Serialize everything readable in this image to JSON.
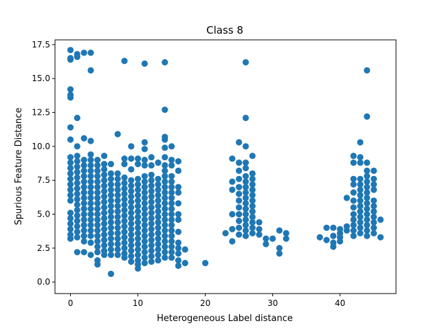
{
  "chart_data": {
    "type": "scatter",
    "title": "Class 8",
    "xlabel": "Heterogeneous Label distance",
    "ylabel": "Spurious Feature Distance",
    "xlim": [
      -2.3,
      48.3
    ],
    "ylim": [
      -0.85,
      17.85
    ],
    "xticks": [
      0,
      10,
      20,
      30,
      40
    ],
    "yticks": [
      0.0,
      2.5,
      5.0,
      7.5,
      10.0,
      12.5,
      15.0,
      17.5
    ],
    "xtick_labels": [
      "0",
      "10",
      "20",
      "30",
      "40"
    ],
    "ytick_labels": [
      "0.0",
      "2.5",
      "5.0",
      "7.5",
      "10.0",
      "12.5",
      "15.0",
      "17.5"
    ],
    "grid": false,
    "marker_color": "#1f77b4",
    "points": [
      [
        0,
        17.1
      ],
      [
        0,
        16.5
      ],
      [
        0,
        16.4
      ],
      [
        0,
        14.2
      ],
      [
        0,
        13.8
      ],
      [
        0,
        13.6
      ],
      [
        0,
        11.4
      ],
      [
        0,
        10.5
      ],
      [
        1,
        16.8
      ],
      [
        1,
        16.6
      ],
      [
        1,
        12.1
      ],
      [
        1,
        10.0
      ],
      [
        2,
        16.9
      ],
      [
        2,
        10.6
      ],
      [
        3,
        16.9
      ],
      [
        3,
        15.6
      ],
      [
        3,
        10.4
      ],
      [
        8,
        16.3
      ],
      [
        11,
        16.1
      ],
      [
        14,
        16.2
      ],
      [
        14,
        12.7
      ],
      [
        14,
        10.7
      ],
      [
        14,
        10.5
      ],
      [
        7,
        10.9
      ],
      [
        11,
        10.3
      ],
      [
        9,
        10.0
      ],
      [
        26,
        16.2
      ],
      [
        26,
        12.1
      ],
      [
        25,
        10.3
      ],
      [
        26,
        10.0
      ],
      [
        24,
        9.1
      ],
      [
        44,
        15.6
      ],
      [
        44,
        12.2
      ],
      [
        43,
        10.3
      ],
      [
        0,
        9.2
      ],
      [
        0,
        8.8
      ],
      [
        0,
        8.4
      ],
      [
        0,
        8.0
      ],
      [
        0,
        7.6
      ],
      [
        0,
        7.2
      ],
      [
        0,
        6.8
      ],
      [
        0,
        6.4
      ],
      [
        0,
        6.0
      ],
      [
        0,
        5.1
      ],
      [
        0,
        4.7
      ],
      [
        0,
        4.3
      ],
      [
        0,
        3.9
      ],
      [
        0,
        3.5
      ],
      [
        0,
        3.2
      ],
      [
        1,
        9.3
      ],
      [
        1,
        8.9
      ],
      [
        1,
        8.5
      ],
      [
        1,
        8.1
      ],
      [
        1,
        7.7
      ],
      [
        1,
        7.3
      ],
      [
        1,
        6.9
      ],
      [
        1,
        6.5
      ],
      [
        1,
        6.1
      ],
      [
        1,
        5.7
      ],
      [
        1,
        5.3
      ],
      [
        1,
        4.9
      ],
      [
        1,
        4.5
      ],
      [
        1,
        4.1
      ],
      [
        1,
        3.7
      ],
      [
        1,
        3.3
      ],
      [
        1,
        2.2
      ],
      [
        2,
        9.0
      ],
      [
        2,
        8.6
      ],
      [
        2,
        8.2
      ],
      [
        2,
        7.8
      ],
      [
        2,
        7.4
      ],
      [
        2,
        7.0
      ],
      [
        2,
        6.6
      ],
      [
        2,
        6.2
      ],
      [
        2,
        5.8
      ],
      [
        2,
        5.4
      ],
      [
        2,
        5.0
      ],
      [
        2,
        4.6
      ],
      [
        2,
        4.2
      ],
      [
        2,
        3.8
      ],
      [
        2,
        3.4
      ],
      [
        2,
        3.0
      ],
      [
        2,
        2.2
      ],
      [
        3,
        9.4
      ],
      [
        3,
        9.0
      ],
      [
        3,
        8.6
      ],
      [
        3,
        8.2
      ],
      [
        3,
        7.8
      ],
      [
        3,
        7.4
      ],
      [
        3,
        7.0
      ],
      [
        3,
        6.6
      ],
      [
        3,
        6.2
      ],
      [
        3,
        5.8
      ],
      [
        3,
        5.4
      ],
      [
        3,
        5.0
      ],
      [
        3,
        4.6
      ],
      [
        3,
        4.2
      ],
      [
        3,
        3.8
      ],
      [
        3,
        3.4
      ],
      [
        3,
        2.9
      ],
      [
        3,
        2.0
      ],
      [
        4,
        9.0
      ],
      [
        4,
        8.6
      ],
      [
        4,
        8.2
      ],
      [
        4,
        7.8
      ],
      [
        4,
        7.4
      ],
      [
        4,
        7.0
      ],
      [
        4,
        6.6
      ],
      [
        4,
        6.2
      ],
      [
        4,
        5.8
      ],
      [
        4,
        5.4
      ],
      [
        4,
        5.0
      ],
      [
        4,
        4.6
      ],
      [
        4,
        4.2
      ],
      [
        4,
        3.8
      ],
      [
        4,
        3.4
      ],
      [
        4,
        3.0
      ],
      [
        4,
        2.6
      ],
      [
        4,
        2.2
      ],
      [
        4,
        1.6
      ],
      [
        4,
        1.3
      ],
      [
        5,
        9.3
      ],
      [
        5,
        8.7
      ],
      [
        5,
        8.3
      ],
      [
        5,
        7.9
      ],
      [
        5,
        7.5
      ],
      [
        5,
        7.1
      ],
      [
        5,
        6.7
      ],
      [
        5,
        6.3
      ],
      [
        5,
        5.9
      ],
      [
        5,
        5.5
      ],
      [
        5,
        5.1
      ],
      [
        5,
        4.7
      ],
      [
        5,
        4.3
      ],
      [
        5,
        3.9
      ],
      [
        5,
        3.5
      ],
      [
        5,
        3.1
      ],
      [
        5,
        2.7
      ],
      [
        5,
        2.3
      ],
      [
        5,
        2.0
      ],
      [
        6,
        8.7
      ],
      [
        6,
        8.0
      ],
      [
        6,
        7.6
      ],
      [
        6,
        7.2
      ],
      [
        6,
        6.8
      ],
      [
        6,
        6.4
      ],
      [
        6,
        6.0
      ],
      [
        6,
        5.6
      ],
      [
        6,
        5.2
      ],
      [
        6,
        4.8
      ],
      [
        6,
        4.4
      ],
      [
        6,
        4.0
      ],
      [
        6,
        3.6
      ],
      [
        6,
        3.2
      ],
      [
        6,
        2.8
      ],
      [
        6,
        2.4
      ],
      [
        6,
        2.0
      ],
      [
        6,
        0.6
      ],
      [
        7,
        8.0
      ],
      [
        7,
        7.6
      ],
      [
        7,
        7.2
      ],
      [
        7,
        6.8
      ],
      [
        7,
        6.4
      ],
      [
        7,
        6.0
      ],
      [
        7,
        5.6
      ],
      [
        7,
        5.2
      ],
      [
        7,
        4.8
      ],
      [
        7,
        4.4
      ],
      [
        7,
        4.0
      ],
      [
        7,
        3.6
      ],
      [
        7,
        3.2
      ],
      [
        7,
        2.8
      ],
      [
        7,
        2.4
      ],
      [
        7,
        2.0
      ],
      [
        8,
        9.1
      ],
      [
        8,
        8.7
      ],
      [
        8,
        7.7
      ],
      [
        8,
        7.3
      ],
      [
        8,
        6.9
      ],
      [
        8,
        6.5
      ],
      [
        8,
        6.1
      ],
      [
        8,
        5.7
      ],
      [
        8,
        5.3
      ],
      [
        8,
        4.9
      ],
      [
        8,
        4.5
      ],
      [
        8,
        4.1
      ],
      [
        8,
        3.7
      ],
      [
        8,
        3.3
      ],
      [
        8,
        2.9
      ],
      [
        8,
        2.5
      ],
      [
        8,
        2.1
      ],
      [
        8,
        1.8
      ],
      [
        9,
        9.1
      ],
      [
        9,
        8.3
      ],
      [
        9,
        7.5
      ],
      [
        9,
        7.1
      ],
      [
        9,
        6.7
      ],
      [
        9,
        6.3
      ],
      [
        9,
        5.9
      ],
      [
        9,
        5.5
      ],
      [
        9,
        5.1
      ],
      [
        9,
        4.7
      ],
      [
        9,
        4.3
      ],
      [
        9,
        3.9
      ],
      [
        9,
        3.5
      ],
      [
        9,
        3.1
      ],
      [
        9,
        2.7
      ],
      [
        9,
        2.3
      ],
      [
        9,
        1.9
      ],
      [
        9,
        1.5
      ],
      [
        10,
        9.1
      ],
      [
        10,
        8.7
      ],
      [
        10,
        7.6
      ],
      [
        10,
        7.2
      ],
      [
        10,
        6.8
      ],
      [
        10,
        6.4
      ],
      [
        10,
        6.0
      ],
      [
        10,
        5.6
      ],
      [
        10,
        5.2
      ],
      [
        10,
        4.8
      ],
      [
        10,
        4.4
      ],
      [
        10,
        4.0
      ],
      [
        10,
        3.6
      ],
      [
        10,
        3.2
      ],
      [
        10,
        2.8
      ],
      [
        10,
        2.4
      ],
      [
        10,
        2.0
      ],
      [
        10,
        1.6
      ],
      [
        10,
        1.0
      ],
      [
        10,
        1.3
      ],
      [
        11,
        9.8
      ],
      [
        11,
        9.0
      ],
      [
        11,
        8.6
      ],
      [
        11,
        7.8
      ],
      [
        11,
        7.4
      ],
      [
        11,
        7.0
      ],
      [
        11,
        6.6
      ],
      [
        11,
        6.2
      ],
      [
        11,
        5.8
      ],
      [
        11,
        5.4
      ],
      [
        11,
        5.0
      ],
      [
        11,
        4.6
      ],
      [
        11,
        4.2
      ],
      [
        11,
        3.8
      ],
      [
        11,
        3.4
      ],
      [
        11,
        3.0
      ],
      [
        11,
        2.6
      ],
      [
        11,
        2.2
      ],
      [
        11,
        1.8
      ],
      [
        11,
        1.4
      ],
      [
        12,
        9.2
      ],
      [
        12,
        8.6
      ],
      [
        12,
        7.9
      ],
      [
        12,
        7.5
      ],
      [
        12,
        7.1
      ],
      [
        12,
        6.7
      ],
      [
        12,
        6.3
      ],
      [
        12,
        5.9
      ],
      [
        12,
        5.5
      ],
      [
        12,
        5.1
      ],
      [
        12,
        4.7
      ],
      [
        12,
        4.3
      ],
      [
        12,
        3.9
      ],
      [
        12,
        3.5
      ],
      [
        12,
        3.1
      ],
      [
        12,
        2.7
      ],
      [
        12,
        2.3
      ],
      [
        12,
        1.9
      ],
      [
        12,
        1.5
      ],
      [
        13,
        8.8
      ],
      [
        13,
        7.6
      ],
      [
        13,
        7.2
      ],
      [
        13,
        6.8
      ],
      [
        13,
        6.4
      ],
      [
        13,
        6.0
      ],
      [
        13,
        5.6
      ],
      [
        13,
        5.2
      ],
      [
        13,
        4.8
      ],
      [
        13,
        4.4
      ],
      [
        13,
        4.0
      ],
      [
        13,
        3.6
      ],
      [
        13,
        3.2
      ],
      [
        13,
        2.8
      ],
      [
        13,
        2.4
      ],
      [
        13,
        2.0
      ],
      [
        13,
        1.6
      ],
      [
        14,
        9.9
      ],
      [
        14,
        9.2
      ],
      [
        14,
        8.6
      ],
      [
        14,
        8.2
      ],
      [
        14,
        7.8
      ],
      [
        14,
        7.4
      ],
      [
        14,
        7.0
      ],
      [
        14,
        6.6
      ],
      [
        14,
        6.2
      ],
      [
        14,
        5.8
      ],
      [
        14,
        5.4
      ],
      [
        14,
        5.0
      ],
      [
        14,
        4.6
      ],
      [
        14,
        4.2
      ],
      [
        14,
        3.8
      ],
      [
        14,
        3.4
      ],
      [
        14,
        3.0
      ],
      [
        14,
        2.6
      ],
      [
        14,
        2.2
      ],
      [
        14,
        1.8
      ],
      [
        15,
        10.0
      ],
      [
        15,
        9.0
      ],
      [
        15,
        8.6
      ],
      [
        15,
        7.8
      ],
      [
        15,
        7.4
      ],
      [
        15,
        7.0
      ],
      [
        15,
        6.6
      ],
      [
        15,
        6.2
      ],
      [
        15,
        5.8
      ],
      [
        15,
        5.4
      ],
      [
        15,
        5.0
      ],
      [
        15,
        4.6
      ],
      [
        15,
        4.2
      ],
      [
        15,
        3.8
      ],
      [
        15,
        3.4
      ],
      [
        15,
        3.0
      ],
      [
        15,
        2.6
      ],
      [
        15,
        2.2
      ],
      [
        15,
        1.8
      ],
      [
        16,
        8.9
      ],
      [
        16,
        8.2
      ],
      [
        16,
        7.0
      ],
      [
        16,
        6.6
      ],
      [
        16,
        5.8
      ],
      [
        16,
        5.0
      ],
      [
        16,
        4.6
      ],
      [
        16,
        3.7
      ],
      [
        16,
        2.5
      ],
      [
        16,
        2.1
      ],
      [
        16,
        1.6
      ],
      [
        16,
        1.2
      ],
      [
        16,
        2.9
      ],
      [
        17,
        2.4
      ],
      [
        17,
        1.4
      ],
      [
        20,
        1.4
      ],
      [
        23,
        3.6
      ],
      [
        24,
        7.4
      ],
      [
        24,
        6.8
      ],
      [
        24,
        5.0
      ],
      [
        24,
        3.9
      ],
      [
        24,
        3.0
      ],
      [
        25,
        8.8
      ],
      [
        25,
        8.2
      ],
      [
        25,
        7.6
      ],
      [
        25,
        7.0
      ],
      [
        25,
        6.5
      ],
      [
        25,
        6.0
      ],
      [
        25,
        5.5
      ],
      [
        25,
        5.0
      ],
      [
        25,
        4.5
      ],
      [
        25,
        4.0
      ],
      [
        25,
        3.5
      ],
      [
        26,
        8.8
      ],
      [
        26,
        8.4
      ],
      [
        26,
        7.8
      ],
      [
        26,
        7.4
      ],
      [
        26,
        7.0
      ],
      [
        26,
        6.6
      ],
      [
        26,
        6.2
      ],
      [
        26,
        5.8
      ],
      [
        26,
        5.4
      ],
      [
        26,
        5.0
      ],
      [
        26,
        4.6
      ],
      [
        26,
        4.2
      ],
      [
        26,
        3.8
      ],
      [
        26,
        3.4
      ],
      [
        27,
        9.3
      ],
      [
        27,
        8.0
      ],
      [
        27,
        7.6
      ],
      [
        27,
        7.2
      ],
      [
        27,
        6.8
      ],
      [
        27,
        6.4
      ],
      [
        27,
        6.0
      ],
      [
        27,
        5.6
      ],
      [
        27,
        5.2
      ],
      [
        27,
        4.8
      ],
      [
        27,
        4.4
      ],
      [
        27,
        4.0
      ],
      [
        27,
        3.6
      ],
      [
        28,
        4.4
      ],
      [
        28,
        3.9
      ],
      [
        28,
        3.5
      ],
      [
        29,
        3.2
      ],
      [
        29,
        2.8
      ],
      [
        30,
        3.2
      ],
      [
        31,
        3.8
      ],
      [
        31,
        2.5
      ],
      [
        31,
        2.1
      ],
      [
        32,
        3.6
      ],
      [
        32,
        3.2
      ],
      [
        37,
        3.3
      ],
      [
        38,
        4.0
      ],
      [
        38,
        3.1
      ],
      [
        39,
        4.0
      ],
      [
        39,
        3.4
      ],
      [
        39,
        2.9
      ],
      [
        39,
        2.6
      ],
      [
        40,
        3.9
      ],
      [
        40,
        3.6
      ],
      [
        40,
        3.3
      ],
      [
        40,
        3.0
      ],
      [
        41,
        4.1
      ],
      [
        41,
        3.8
      ],
      [
        41,
        6.2
      ],
      [
        42,
        9.3
      ],
      [
        42,
        8.8
      ],
      [
        42,
        7.6
      ],
      [
        42,
        7.2
      ],
      [
        42,
        6.6
      ],
      [
        42,
        6.0
      ],
      [
        42,
        5.5
      ],
      [
        42,
        5.0
      ],
      [
        42,
        4.6
      ],
      [
        42,
        4.2
      ],
      [
        42,
        3.8
      ],
      [
        42,
        3.4
      ],
      [
        43,
        9.2
      ],
      [
        43,
        8.8
      ],
      [
        43,
        7.6
      ],
      [
        43,
        7.2
      ],
      [
        43,
        6.8
      ],
      [
        43,
        6.4
      ],
      [
        43,
        6.0
      ],
      [
        43,
        5.6
      ],
      [
        43,
        5.2
      ],
      [
        43,
        4.8
      ],
      [
        43,
        4.4
      ],
      [
        43,
        4.0
      ],
      [
        43,
        3.6
      ],
      [
        44,
        8.8
      ],
      [
        44,
        8.2
      ],
      [
        44,
        7.8
      ],
      [
        44,
        7.4
      ],
      [
        44,
        7.0
      ],
      [
        44,
        6.6
      ],
      [
        44,
        6.2
      ],
      [
        44,
        5.8
      ],
      [
        44,
        5.4
      ],
      [
        44,
        5.0
      ],
      [
        44,
        4.6
      ],
      [
        44,
        4.2
      ],
      [
        44,
        3.8
      ],
      [
        44,
        3.4
      ],
      [
        45,
        8.2
      ],
      [
        45,
        7.6
      ],
      [
        45,
        7.2
      ],
      [
        45,
        6.8
      ],
      [
        45,
        6.0
      ],
      [
        45,
        5.6
      ],
      [
        45,
        5.2
      ],
      [
        45,
        4.8
      ],
      [
        45,
        4.4
      ],
      [
        45,
        4.0
      ],
      [
        45,
        3.6
      ],
      [
        46,
        4.6
      ],
      [
        46,
        3.3
      ]
    ]
  }
}
